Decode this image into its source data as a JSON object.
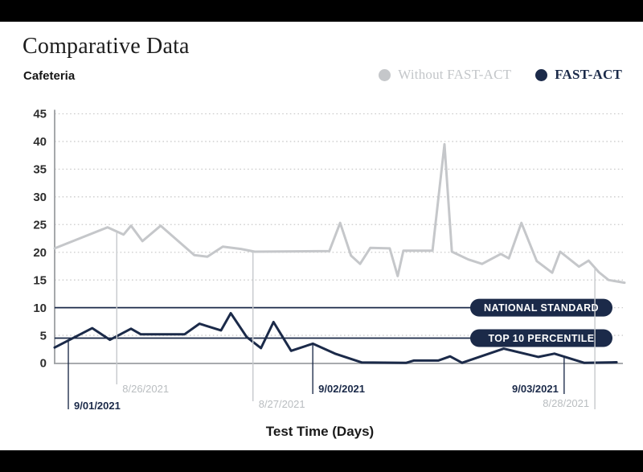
{
  "header": {
    "title": "Comparative Data",
    "subtitle": "Cafeteria"
  },
  "legend": [
    {
      "label": "Without FAST-ACT",
      "color": "#c5c7ca"
    },
    {
      "label": "FAST-ACT",
      "color": "#1b2a49"
    }
  ],
  "xlabel": "Test Time (Days)",
  "colors": {
    "navy": "#1b2a49",
    "gray_line": "#c5c7ca",
    "axis": "#9c9fa2",
    "grid": "#cccccc",
    "gray_text": "#b9bdc0",
    "pill_bg": "#1b2a49",
    "pill_text": "#ffffff"
  },
  "chart_data": {
    "type": "line",
    "title": "Comparative Data",
    "subtitle": "Cafeteria",
    "xlabel": "Test Time (Days)",
    "ylabel": "",
    "ylim": [
      0,
      45
    ],
    "yticks": [
      0,
      5,
      10,
      15,
      20,
      25,
      30,
      35,
      40,
      45
    ],
    "grid": "horizontal-dotted",
    "legend_position": "top-right",
    "reference_lines": [
      {
        "label": "NATIONAL STANDARD",
        "value": 10
      },
      {
        "label": "TOP 10 PERCENTILE",
        "value": 4.5
      }
    ],
    "series": [
      {
        "name": "Without FAST-ACT",
        "color": "#c5c7ca",
        "points": [
          [
            0.0,
            20.7
          ],
          [
            0.093,
            24.5
          ],
          [
            0.121,
            23.2
          ],
          [
            0.134,
            24.8
          ],
          [
            0.154,
            22.0
          ],
          [
            0.186,
            24.8
          ],
          [
            0.245,
            19.5
          ],
          [
            0.268,
            19.2
          ],
          [
            0.295,
            21.0
          ],
          [
            0.327,
            20.6
          ],
          [
            0.351,
            20.1
          ],
          [
            0.482,
            20.2
          ],
          [
            0.501,
            25.3
          ],
          [
            0.52,
            19.4
          ],
          [
            0.536,
            17.9
          ],
          [
            0.554,
            20.8
          ],
          [
            0.588,
            20.7
          ],
          [
            0.602,
            15.7
          ],
          [
            0.612,
            20.3
          ],
          [
            0.663,
            20.3
          ],
          [
            0.684,
            39.5
          ],
          [
            0.697,
            20.1
          ],
          [
            0.726,
            18.7
          ],
          [
            0.75,
            17.9
          ],
          [
            0.783,
            19.7
          ],
          [
            0.797,
            18.9
          ],
          [
            0.819,
            25.3
          ],
          [
            0.846,
            18.4
          ],
          [
            0.873,
            16.3
          ],
          [
            0.887,
            20.1
          ],
          [
            0.92,
            17.4
          ],
          [
            0.937,
            18.5
          ],
          [
            0.955,
            16.4
          ],
          [
            0.972,
            15.0
          ],
          [
            0.994,
            14.6
          ],
          [
            1.0,
            14.5
          ]
        ]
      },
      {
        "name": "FAST-ACT",
        "color": "#1b2a49",
        "points": [
          [
            0.0,
            2.8
          ],
          [
            0.066,
            6.3
          ],
          [
            0.097,
            4.2
          ],
          [
            0.134,
            6.2
          ],
          [
            0.151,
            5.2
          ],
          [
            0.228,
            5.2
          ],
          [
            0.254,
            7.1
          ],
          [
            0.292,
            5.9
          ],
          [
            0.309,
            9.0
          ],
          [
            0.337,
            4.7
          ],
          [
            0.362,
            2.7
          ],
          [
            0.384,
            7.4
          ],
          [
            0.415,
            2.2
          ],
          [
            0.453,
            3.5
          ],
          [
            0.492,
            1.7
          ],
          [
            0.539,
            0.1
          ],
          [
            0.617,
            0.05
          ],
          [
            0.63,
            0.45
          ],
          [
            0.673,
            0.45
          ],
          [
            0.694,
            1.2
          ],
          [
            0.715,
            0.05
          ],
          [
            0.788,
            2.6
          ],
          [
            0.849,
            1.1
          ],
          [
            0.877,
            1.7
          ],
          [
            0.929,
            0.05
          ],
          [
            0.986,
            0.15
          ]
        ]
      }
    ],
    "annotations": [
      {
        "label": "9/01/2021",
        "x": 0.024,
        "series": 1,
        "side": "right",
        "label_baseline": 509,
        "line_end": 509
      },
      {
        "label": "8/26/2021",
        "x": 0.109,
        "series": 0,
        "side": "right",
        "label_baseline": 488,
        "line_end": 478
      },
      {
        "label": "8/27/2021",
        "x": 0.348,
        "series": 0,
        "side": "right",
        "label_baseline": 507,
        "line_end": 499
      },
      {
        "label": "9/02/2021",
        "x": 0.453,
        "series": 1,
        "side": "right",
        "label_baseline": 488,
        "line_end": 490
      },
      {
        "label": "9/03/2021",
        "x": 0.894,
        "series": 1,
        "side": "left",
        "label_baseline": 488,
        "line_end": 490
      },
      {
        "label": "8/28/2021",
        "x": 0.948,
        "series": 0,
        "side": "left",
        "label_baseline": 506,
        "line_end": 509
      }
    ]
  }
}
